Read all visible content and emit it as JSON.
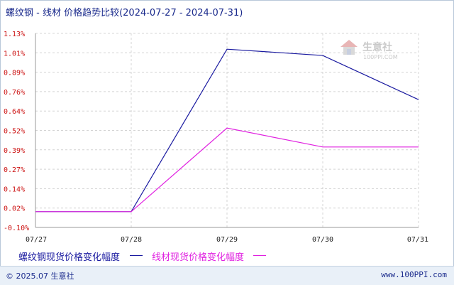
{
  "header": {
    "title": "螺纹钢 - 线材 价格趋势比较(2024-07-27 - 2024-07-31)"
  },
  "watermark": {
    "brand": "生意社",
    "url": "100PPI.COM"
  },
  "footer": {
    "copyright": "© 2025.07 生意社",
    "site": "www.100PPI.com"
  },
  "chart_data": {
    "type": "line",
    "title": "螺纹钢 - 线材 价格趋势比较(2024-07-27 - 2024-07-31)",
    "x": [
      "07/27",
      "07/28",
      "07/29",
      "07/30",
      "07/31"
    ],
    "yticks": [
      "1.13%",
      "1.01%",
      "0.89%",
      "0.76%",
      "0.64%",
      "0.52%",
      "0.39%",
      "0.27%",
      "0.14%",
      "0.02%",
      "-0.10%"
    ],
    "ylim": [
      -0.1,
      1.13
    ],
    "grid": true,
    "legend_position": "bottom",
    "series": [
      {
        "name": "螺纹钢现货价格变化幅度",
        "color": "#1a1aa0",
        "values": [
          0,
          0,
          1.03,
          0.99,
          0.71
        ]
      },
      {
        "name": "线材现货价格变化幅度",
        "color": "#e020e0",
        "values": [
          0,
          0,
          0.53,
          0.41,
          0.41
        ]
      }
    ]
  }
}
